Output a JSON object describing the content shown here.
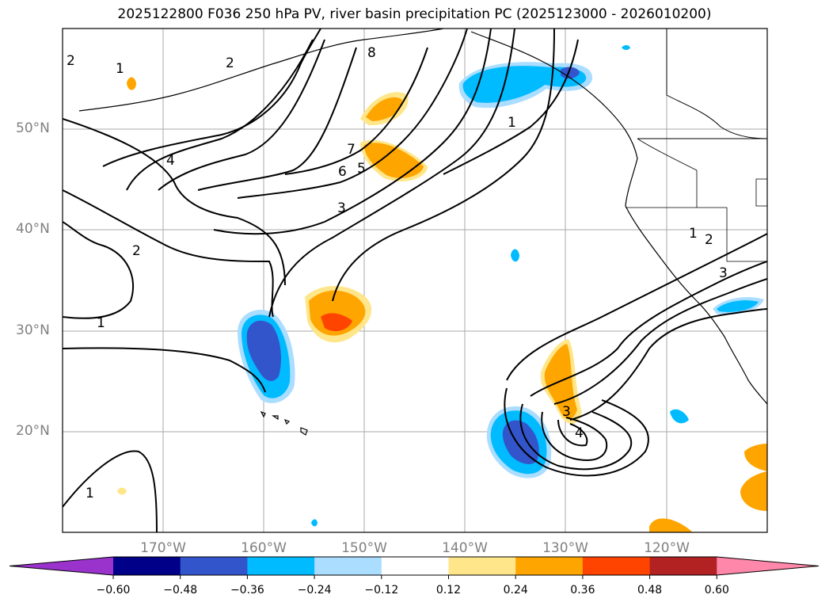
{
  "title": "2025122800 F036 250 hPa PV, river basin precipitation PC (2025123000 - 2026010200)",
  "map": {
    "lat_labels": [
      {
        "text": "50°N",
        "lat": 50
      },
      {
        "text": "40°N",
        "lat": 40
      },
      {
        "text": "30°N",
        "lat": 30
      },
      {
        "text": "20°N",
        "lat": 20
      }
    ],
    "lon_labels": [
      {
        "text": "170°W",
        "lon": -170
      },
      {
        "text": "160°W",
        "lon": -160
      },
      {
        "text": "150°W",
        "lon": -150
      },
      {
        "text": "140°W",
        "lon": -140
      },
      {
        "text": "130°W",
        "lon": -130
      },
      {
        "text": "120°W",
        "lon": -120
      }
    ],
    "extent": {
      "lon_min": -180,
      "lon_max": -110,
      "lat_min": 10,
      "lat_max": 60
    },
    "contour_labels": [
      "1",
      "2",
      "3",
      "4",
      "5",
      "6",
      "7",
      "8"
    ]
  },
  "colorbar": {
    "ticks": [
      "−0.60",
      "−0.48",
      "−0.36",
      "−0.24",
      "−0.12",
      "0.12",
      "0.24",
      "0.36",
      "0.48",
      "0.60"
    ],
    "colors": [
      "#9933cc",
      "#000088",
      "#3355cc",
      "#00bbff",
      "#aaddff",
      "#ffffff",
      "#ffe68a",
      "#ffa500",
      "#ff4400",
      "#b22222",
      "#ff88aa"
    ]
  }
}
